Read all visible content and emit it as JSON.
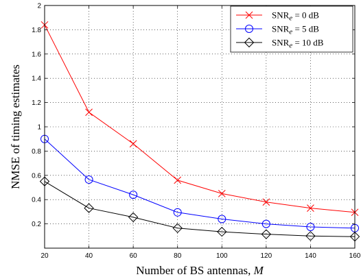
{
  "chart_data": {
    "type": "line",
    "xlabel": "Number of BS antennas, M",
    "ylabel": "NMSE of timing estimates",
    "xlim": [
      20,
      160
    ],
    "ylim": [
      0,
      2
    ],
    "grid": "dotted",
    "legend_position": "top-right",
    "x": [
      20,
      40,
      60,
      80,
      100,
      120,
      140,
      160
    ],
    "xticks": [
      "20",
      "40",
      "60",
      "80",
      "100",
      "120",
      "140",
      "160"
    ],
    "yticks": [
      "0.2",
      "0.4",
      "0.6",
      "0.8",
      "1",
      "1.2",
      "1.4",
      "1.6",
      "1.8",
      "2"
    ],
    "series": [
      {
        "name": "SNRe = 0 dB",
        "label_base": "SNR",
        "label_sub": "e",
        "label_rest": " = 0 dB",
        "color": "#ff0000",
        "marker": "x",
        "values": [
          1.84,
          1.12,
          0.86,
          0.56,
          0.45,
          0.38,
          0.33,
          0.295
        ]
      },
      {
        "name": "SNRe = 5 dB",
        "label_base": "SNR",
        "label_sub": "e",
        "label_rest": " = 5 dB",
        "color": "#0000ff",
        "marker": "circle",
        "values": [
          0.9,
          0.565,
          0.44,
          0.295,
          0.24,
          0.2,
          0.175,
          0.165
        ]
      },
      {
        "name": "SNRe = 10 dB",
        "label_base": "SNR",
        "label_sub": "e",
        "label_rest": " = 10 dB",
        "color": "#000000",
        "marker": "diamond",
        "values": [
          0.55,
          0.33,
          0.255,
          0.165,
          0.135,
          0.115,
          0.1,
          0.095
        ]
      }
    ]
  }
}
